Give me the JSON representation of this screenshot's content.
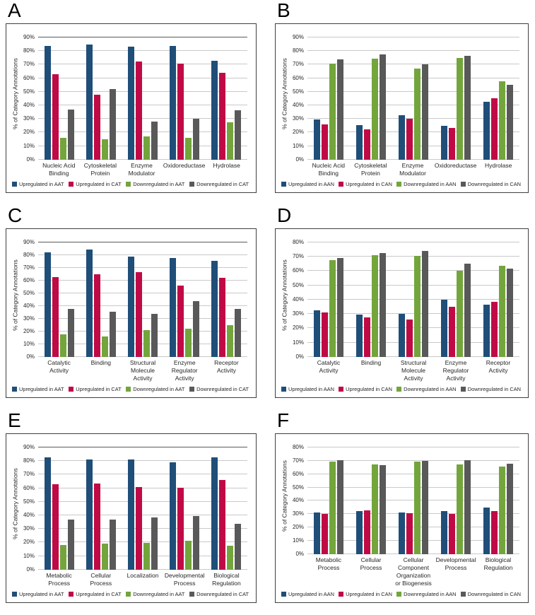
{
  "ylabel_shared": "% of Category Annotations",
  "colors": {
    "up_a": "#1f4e79",
    "up_c": "#c00a46",
    "down_a": "#73a53c",
    "down_c": "#595959"
  },
  "chart_data": [
    {
      "type": "bar",
      "panel_label": "A",
      "ylabel": "% of Category Annotations",
      "ylim": [
        0,
        90
      ],
      "ytick_step": 10,
      "grid": true,
      "legend_position": "bottom",
      "categories": [
        "Nucleic Acid Binding",
        "Cytoskeletal Protein",
        "Enzyme Modulator",
        "Oxidoreductase",
        "Hydrolase"
      ],
      "series": [
        {
          "name": "Upregulated in AAT",
          "color": "#1f4e79",
          "values": [
            84,
            85,
            83.5,
            84,
            73
          ]
        },
        {
          "name": "Upregulated in CAT",
          "color": "#c00a46",
          "values": [
            63,
            48,
            72.5,
            71,
            64
          ]
        },
        {
          "name": "Downregulated in AAT",
          "color": "#73a53c",
          "values": [
            16,
            15,
            17,
            16,
            27.5
          ]
        },
        {
          "name": "Downregulated in CAT",
          "color": "#595959",
          "values": [
            37,
            52,
            28,
            30,
            36.5
          ]
        }
      ]
    },
    {
      "type": "bar",
      "panel_label": "B",
      "ylabel": "% of Category Annotations",
      "ylim": [
        0,
        90
      ],
      "ytick_step": 10,
      "grid": true,
      "legend_position": "bottom",
      "categories": [
        "Nucleic Acid Binding",
        "Cytoskeletal Protein",
        "Enzyme Modulator",
        "Oxidoreductase",
        "Hydrolase"
      ],
      "series": [
        {
          "name": "Upregulated in AAN",
          "color": "#1f4e79",
          "values": [
            29.5,
            25.5,
            33,
            25,
            42.5
          ]
        },
        {
          "name": "Upregulated in CAN",
          "color": "#c00a46",
          "values": [
            26,
            22.5,
            30,
            23.5,
            45
          ]
        },
        {
          "name": "Downregulated in AAN",
          "color": "#73a53c",
          "values": [
            70.5,
            74.5,
            67,
            75,
            57.5
          ]
        },
        {
          "name": "Downregulated in CAN",
          "color": "#595959",
          "values": [
            74,
            77.5,
            70,
            76.5,
            55
          ]
        }
      ]
    },
    {
      "type": "bar",
      "panel_label": "C",
      "ylabel": "% of Category Annotations",
      "ylim": [
        0,
        90
      ],
      "ytick_step": 10,
      "grid": true,
      "legend_position": "bottom",
      "categories": [
        "Catalytic Activity",
        "Binding",
        "Structural Molecule Activity",
        "Enzyme Regulator Activity",
        "Receptor Activity"
      ],
      "series": [
        {
          "name": "Upregulated in AAT",
          "color": "#1f4e79",
          "values": [
            82,
            84.5,
            79,
            78,
            75.5
          ]
        },
        {
          "name": "Upregulated in CAT",
          "color": "#c00a46",
          "values": [
            63,
            65,
            66.5,
            56,
            62
          ]
        },
        {
          "name": "Downregulated in AAT",
          "color": "#73a53c",
          "values": [
            18,
            16,
            21,
            22,
            25
          ]
        },
        {
          "name": "Downregulated in CAT",
          "color": "#595959",
          "values": [
            37.5,
            35.5,
            34,
            44,
            38
          ]
        }
      ]
    },
    {
      "type": "bar",
      "panel_label": "D",
      "ylabel": "% of Category Annotations",
      "ylim": [
        0,
        80
      ],
      "ytick_step": 10,
      "grid": true,
      "legend_position": "bottom",
      "categories": [
        "Catalytic Activity",
        "Binding",
        "Structural Molecule Activity",
        "Enzyme Regulator Activity",
        "Receptor Activity"
      ],
      "series": [
        {
          "name": "Upregulated in AAN",
          "color": "#1f4e79",
          "values": [
            32.5,
            29.5,
            30,
            40,
            36.5
          ]
        },
        {
          "name": "Upregulated in CAN",
          "color": "#c00a46",
          "values": [
            31,
            27.5,
            26,
            35,
            38.5
          ]
        },
        {
          "name": "Downregulated in AAN",
          "color": "#73a53c",
          "values": [
            67.5,
            71,
            70.5,
            60,
            63.5
          ]
        },
        {
          "name": "Downregulated in CAN",
          "color": "#595959",
          "values": [
            69,
            72.5,
            74,
            65,
            61.5
          ]
        }
      ]
    },
    {
      "type": "bar",
      "panel_label": "E",
      "ylabel": "% of Category Annotations",
      "ylim": [
        0,
        90
      ],
      "ytick_step": 10,
      "grid": true,
      "legend_position": "bottom",
      "categories": [
        "Metabolic Process",
        "Cellular Process",
        "Localization",
        "Developmental Process",
        "Biological Regulation"
      ],
      "series": [
        {
          "name": "Upregulated in AAT",
          "color": "#1f4e79",
          "values": [
            82.5,
            81,
            81,
            79,
            82.5
          ]
        },
        {
          "name": "Upregulated in CAT",
          "color": "#c00a46",
          "values": [
            63,
            63.5,
            61,
            60.5,
            66
          ]
        },
        {
          "name": "Downregulated in AAT",
          "color": "#73a53c",
          "values": [
            18,
            19,
            19.5,
            21.5,
            17.5
          ]
        },
        {
          "name": "Downregulated in CAT",
          "color": "#595959",
          "values": [
            37,
            37,
            38.5,
            39.5,
            34
          ]
        }
      ]
    },
    {
      "type": "bar",
      "panel_label": "F",
      "ylabel": "% of Category Annotations",
      "ylim": [
        0,
        80
      ],
      "ytick_step": 10,
      "grid": true,
      "legend_position": "bottom",
      "categories": [
        "Metabolic Process",
        "Cellular Process",
        "Cellular Component Organization or Biogenesis",
        "Developmental Process",
        "Biological Regulation"
      ],
      "series": [
        {
          "name": "Upregulated in AAN",
          "color": "#1f4e79",
          "values": [
            31,
            32.5,
            31,
            32.5,
            35
          ]
        },
        {
          "name": "Upregulated in CAN",
          "color": "#c00a46",
          "values": [
            30,
            33,
            30.5,
            30,
            32.5
          ]
        },
        {
          "name": "Downregulated in AAN",
          "color": "#73a53c",
          "values": [
            69.5,
            67.5,
            69.5,
            67.5,
            65.5
          ]
        },
        {
          "name": "Downregulated in CAN",
          "color": "#595959",
          "values": [
            70.5,
            67,
            70,
            70.5,
            68
          ]
        }
      ]
    }
  ]
}
